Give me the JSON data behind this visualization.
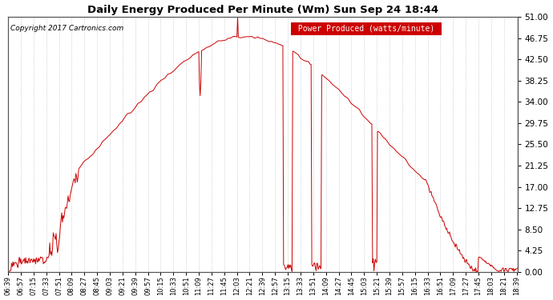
{
  "title": "Daily Energy Produced Per Minute (Wm) Sun Sep 24 18:44",
  "ylabel_right": "Power Produced (watts/minute)",
  "copyright": "Copyright 2017 Cartronics.com",
  "line_color": "#cc0000",
  "background_color": "#ffffff",
  "grid_color": "#bbbbbb",
  "ylim": [
    0,
    51.0
  ],
  "yticks": [
    0.0,
    4.25,
    8.5,
    12.75,
    17.0,
    21.25,
    25.5,
    29.75,
    34.0,
    38.25,
    42.5,
    46.75,
    51.0
  ],
  "legend_bg": "#cc0000",
  "legend_text_color": "#ffffff",
  "figsize": [
    6.9,
    3.75
  ],
  "dpi": 100
}
